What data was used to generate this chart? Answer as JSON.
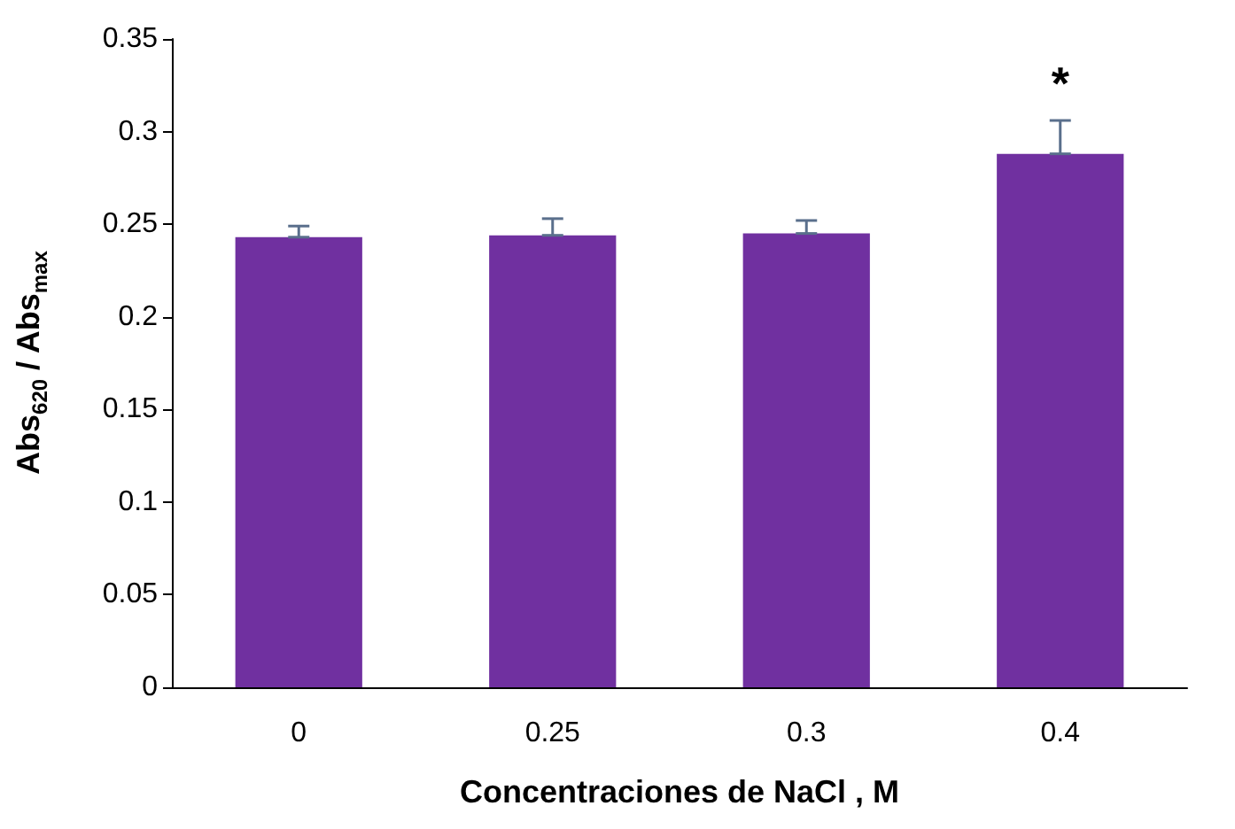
{
  "chart_data": {
    "type": "bar",
    "xlabel": "Concentraciones de NaCl , M",
    "ylabel": "Abs$_{620}$ / Abs$_{max}$",
    "categories": [
      "0",
      "0.25",
      "0.3",
      "0.4"
    ],
    "values": [
      0.243,
      0.244,
      0.245,
      0.288
    ],
    "errors": [
      [
        0.243,
        0.249
      ],
      [
        0.244,
        0.253
      ],
      [
        0.245,
        0.252
      ],
      [
        0.288,
        0.306
      ]
    ],
    "color": "#7030a0",
    "ylim": [
      0,
      0.35
    ],
    "yticks": [
      0,
      0.05,
      0.1,
      0.15,
      0.2,
      0.25,
      0.3,
      0.35
    ],
    "annotations": [
      "*"
    ]
  }
}
